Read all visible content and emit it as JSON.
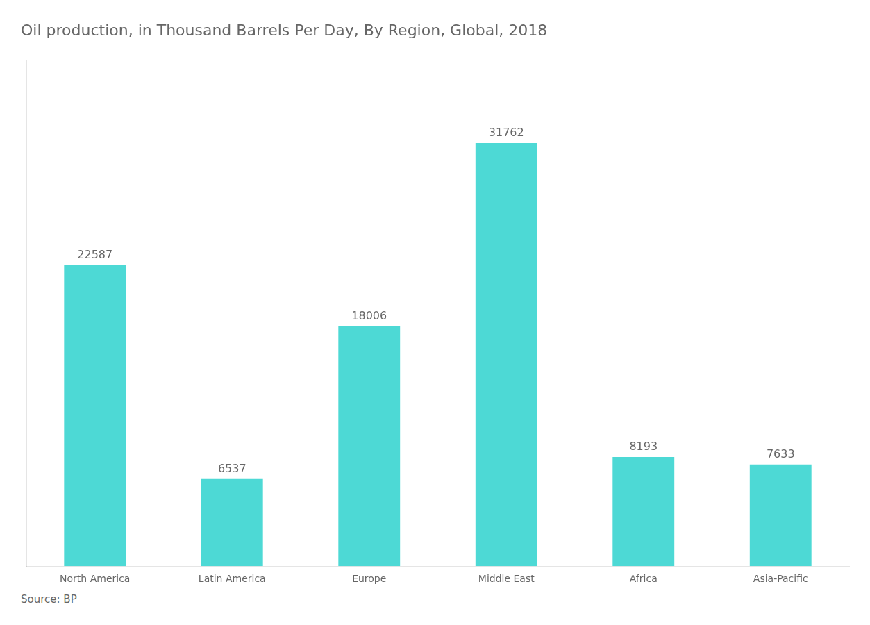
{
  "chart_data": {
    "type": "bar",
    "title": "Oil production, in Thousand Barrels Per Day, By Region, Global, 2018",
    "categories": [
      "North America",
      "Latin America",
      "Europe",
      "Middle East",
      "Africa",
      "Asia-Pacific"
    ],
    "values": [
      22587,
      6537,
      18006,
      31762,
      8193,
      7633
    ],
    "color": "#4DD9D5",
    "ylim": [
      0,
      38000
    ],
    "grid": false,
    "data_labels": true,
    "tick_labels": "x",
    "legend": false,
    "annotation": "Source: BP"
  }
}
